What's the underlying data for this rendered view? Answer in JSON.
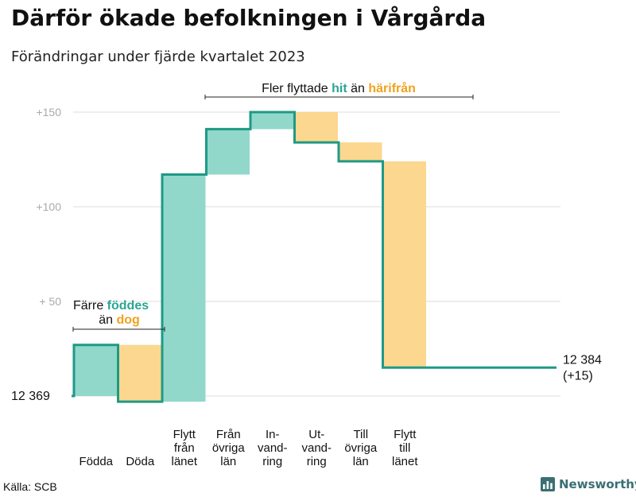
{
  "title": "Därför ökade befolkningen i Vårgårda",
  "subtitle": "Förändringar under fjärde kvartalet 2023",
  "source": "Källa: SCB",
  "brand": "Newsworthy",
  "colors": {
    "inflow": "#91d8cb",
    "outflow": "#fbd78f",
    "line": "#1e9a85",
    "teal_text": "#2aa593",
    "orange_text": "#f0a21e",
    "grid": "#dddddd",
    "tick": "#aaaaaa"
  },
  "chart_data": {
    "type": "waterfall",
    "title": "Därför ökade befolkningen i Vårgårda",
    "subtitle": "Förändringar under fjärde kvartalet 2023",
    "start_value": 12369,
    "start_label": "12  369",
    "end_value": 12384,
    "end_label_line1": "12 384",
    "end_label_line2": "(+15)",
    "ylim": [
      -3,
      160
    ],
    "yticks": [
      {
        "value": 150,
        "label": "+150"
      },
      {
        "value": 100,
        "label": "+100"
      },
      {
        "value": 50,
        "label": "+  50"
      }
    ],
    "steps": [
      {
        "name": "Födda",
        "label_lines": [
          "Födda"
        ],
        "change": 27
      },
      {
        "name": "Döda",
        "label_lines": [
          "Döda"
        ],
        "change": -30
      },
      {
        "name": "Flytt från länet",
        "label_lines": [
          "Flytt",
          "från",
          "länet"
        ],
        "change": 120
      },
      {
        "name": "Från övriga län",
        "label_lines": [
          "Från",
          "övriga",
          "län"
        ],
        "change": 24
      },
      {
        "name": "Invandring",
        "label_lines": [
          "In-",
          "vand-",
          "ring"
        ],
        "change": 9
      },
      {
        "name": "Utvandring",
        "label_lines": [
          "Ut-",
          "vand-",
          "ring"
        ],
        "change": -16
      },
      {
        "name": "Till övriga län",
        "label_lines": [
          "Till",
          "övriga",
          "län"
        ],
        "change": -10
      },
      {
        "name": "Flytt till länet",
        "label_lines": [
          "Flytt",
          "till",
          "länet"
        ],
        "change": -109
      }
    ],
    "annotations": {
      "births": {
        "line1_prefix": "Färre ",
        "line1_highlight": "föddes",
        "line2_prefix": "än ",
        "line2_highlight": "dog"
      },
      "migration": {
        "prefix": "Fler flyttade ",
        "highlight1": "hit",
        "middle": " än ",
        "highlight2": "härifrån"
      }
    }
  }
}
